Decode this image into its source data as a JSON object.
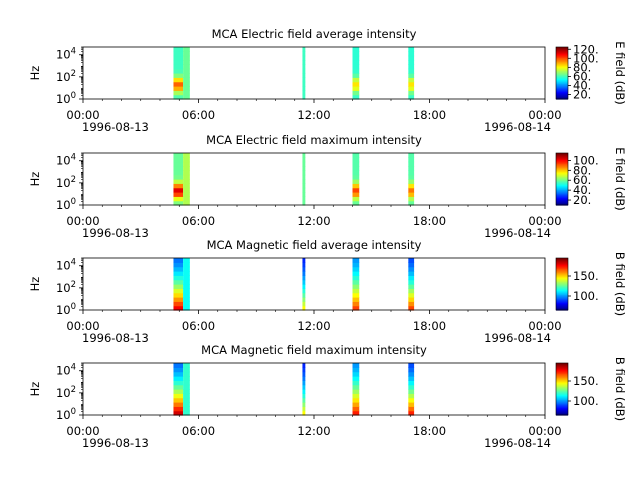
{
  "chart_data": [
    {
      "type": "heatmap",
      "title": "MCA  Electric field average intensity",
      "ylabel": "Hz",
      "yscale": "log",
      "ylim": [
        1,
        50000
      ],
      "y_ticks": [
        {
          "value": 1,
          "base": "10",
          "exp": "0"
        },
        {
          "value": 100,
          "base": "10",
          "exp": "2"
        },
        {
          "value": 10000,
          "base": "10",
          "exp": "4"
        }
      ],
      "x_range_hours": [
        0,
        24
      ],
      "x_ticks": [
        {
          "hour": 0,
          "label": "00:00"
        },
        {
          "hour": 6,
          "label": "06:00"
        },
        {
          "hour": 12,
          "label": "12:00"
        },
        {
          "hour": 18,
          "label": "18:00"
        },
        {
          "hour": 24,
          "label": "00:00"
        }
      ],
      "date_start": "1996-08-13",
      "date_end": "1996-08-14",
      "colorbar": {
        "label": "E field (dB)",
        "colormap": "jet",
        "range": [
          10,
          125
        ],
        "ticks": [
          20,
          40,
          60,
          80,
          100,
          120
        ],
        "tick_labels": [
          "20.",
          "40.",
          "60.",
          "80.",
          "100.",
          "120."
        ]
      },
      "intervals": [
        {
          "start_hour": 4.7,
          "end_hour": 5.2,
          "profile": "low-freq-peak",
          "peak_db": 100,
          "floor_db": 60
        },
        {
          "start_hour": 5.2,
          "end_hour": 5.55,
          "profile": "uniform",
          "peak_db": 70,
          "floor_db": 60
        },
        {
          "start_hour": 11.4,
          "end_hour": 11.55,
          "profile": "uniform",
          "peak_db": 62,
          "floor_db": 58
        },
        {
          "start_hour": 14.0,
          "end_hour": 14.35,
          "profile": "low-freq-peak",
          "peak_db": 85,
          "floor_db": 58
        },
        {
          "start_hour": 16.9,
          "end_hour": 17.2,
          "profile": "low-freq-peak",
          "peak_db": 85,
          "floor_db": 58
        }
      ]
    },
    {
      "type": "heatmap",
      "title": "MCA  Electric field maximum intensity",
      "ylabel": "Hz",
      "yscale": "log",
      "ylim": [
        1,
        50000
      ],
      "y_ticks": [
        {
          "value": 1,
          "base": "10",
          "exp": "0"
        },
        {
          "value": 100,
          "base": "10",
          "exp": "2"
        },
        {
          "value": 10000,
          "base": "10",
          "exp": "4"
        }
      ],
      "x_range_hours": [
        0,
        24
      ],
      "x_ticks": [
        {
          "hour": 0,
          "label": "00:00"
        },
        {
          "hour": 6,
          "label": "06:00"
        },
        {
          "hour": 12,
          "label": "12:00"
        },
        {
          "hour": 18,
          "label": "18:00"
        },
        {
          "hour": 24,
          "label": "00:00"
        }
      ],
      "date_start": "1996-08-13",
      "date_end": "1996-08-14",
      "colorbar": {
        "label": "E field (dB)",
        "colormap": "jet",
        "range": [
          10,
          115
        ],
        "ticks": [
          20,
          40,
          60,
          80,
          100
        ],
        "tick_labels": [
          "20.",
          "40.",
          "60.",
          "80.",
          "100."
        ]
      },
      "intervals": [
        {
          "start_hour": 4.7,
          "end_hour": 5.2,
          "profile": "low-freq-peak",
          "peak_db": 105,
          "floor_db": 60
        },
        {
          "start_hour": 5.2,
          "end_hour": 5.55,
          "profile": "uniform",
          "peak_db": 75,
          "floor_db": 60
        },
        {
          "start_hour": 11.4,
          "end_hour": 11.55,
          "profile": "uniform",
          "peak_db": 62,
          "floor_db": 58
        },
        {
          "start_hour": 14.0,
          "end_hour": 14.35,
          "profile": "low-freq-peak",
          "peak_db": 95,
          "floor_db": 58
        },
        {
          "start_hour": 16.9,
          "end_hour": 17.2,
          "profile": "low-freq-peak",
          "peak_db": 90,
          "floor_db": 58
        }
      ]
    },
    {
      "type": "heatmap",
      "title": "MCA  Magnetic field average intensity",
      "ylabel": "Hz",
      "yscale": "log",
      "ylim": [
        1,
        50000
      ],
      "y_ticks": [
        {
          "value": 1,
          "base": "10",
          "exp": "0"
        },
        {
          "value": 100,
          "base": "10",
          "exp": "2"
        },
        {
          "value": 10000,
          "base": "10",
          "exp": "4"
        }
      ],
      "x_range_hours": [
        0,
        24
      ],
      "x_ticks": [
        {
          "hour": 0,
          "label": "00:00"
        },
        {
          "hour": 6,
          "label": "06:00"
        },
        {
          "hour": 12,
          "label": "12:00"
        },
        {
          "hour": 18,
          "label": "18:00"
        },
        {
          "hour": 24,
          "label": "00:00"
        }
      ],
      "date_start": "1996-08-13",
      "date_end": "1996-08-14",
      "colorbar": {
        "label": "B field (dB)",
        "colormap": "jet",
        "range": [
          65,
          195
        ],
        "ticks": [
          100,
          150
        ],
        "tick_labels": [
          "100.",
          "150."
        ]
      },
      "intervals": [
        {
          "start_hour": 4.7,
          "end_hour": 5.2,
          "profile": "high-at-low-freq",
          "peak_db": 185,
          "floor_db": 95
        },
        {
          "start_hour": 5.2,
          "end_hour": 5.55,
          "profile": "uniform",
          "peak_db": 120,
          "floor_db": 110
        },
        {
          "start_hour": 11.4,
          "end_hour": 11.55,
          "profile": "high-at-low-freq",
          "peak_db": 150,
          "floor_db": 85
        },
        {
          "start_hour": 14.0,
          "end_hour": 14.35,
          "profile": "high-at-low-freq",
          "peak_db": 175,
          "floor_db": 100
        },
        {
          "start_hour": 16.9,
          "end_hour": 17.2,
          "profile": "high-at-low-freq",
          "peak_db": 175,
          "floor_db": 90
        }
      ]
    },
    {
      "type": "heatmap",
      "title": "MCA  Magnetic field maximum intensity",
      "ylabel": "Hz",
      "yscale": "log",
      "ylim": [
        1,
        50000
      ],
      "y_ticks": [
        {
          "value": 1,
          "base": "10",
          "exp": "0"
        },
        {
          "value": 100,
          "base": "10",
          "exp": "2"
        },
        {
          "value": 10000,
          "base": "10",
          "exp": "4"
        }
      ],
      "x_range_hours": [
        0,
        24
      ],
      "x_ticks": [
        {
          "hour": 0,
          "label": "00:00"
        },
        {
          "hour": 6,
          "label": "06:00"
        },
        {
          "hour": 12,
          "label": "12:00"
        },
        {
          "hour": 18,
          "label": "18:00"
        },
        {
          "hour": 24,
          "label": "00:00"
        }
      ],
      "date_start": "1996-08-13",
      "date_end": "1996-08-14",
      "colorbar": {
        "label": "B field (dB)",
        "colormap": "jet",
        "range": [
          65,
          195
        ],
        "ticks": [
          100,
          150
        ],
        "tick_labels": [
          "100.",
          "150."
        ]
      },
      "intervals": [
        {
          "start_hour": 4.7,
          "end_hour": 5.2,
          "profile": "high-at-low-freq",
          "peak_db": 190,
          "floor_db": 95
        },
        {
          "start_hour": 5.2,
          "end_hour": 5.55,
          "profile": "uniform",
          "peak_db": 125,
          "floor_db": 115
        },
        {
          "start_hour": 11.4,
          "end_hour": 11.55,
          "profile": "high-at-low-freq",
          "peak_db": 150,
          "floor_db": 85
        },
        {
          "start_hour": 14.0,
          "end_hour": 14.35,
          "profile": "high-at-low-freq",
          "peak_db": 180,
          "floor_db": 100
        },
        {
          "start_hour": 16.9,
          "end_hour": 17.2,
          "profile": "high-at-low-freq",
          "peak_db": 180,
          "floor_db": 90
        }
      ]
    }
  ]
}
